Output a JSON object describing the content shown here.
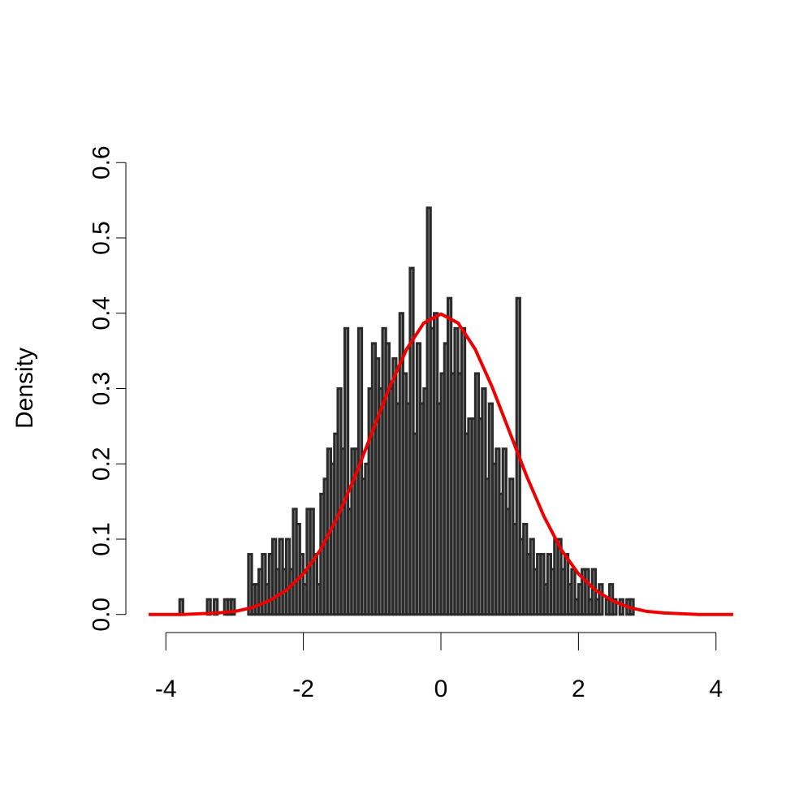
{
  "chart_data": {
    "type": "histogram",
    "ylabel": "Density",
    "bins": [
      -3.8,
      -3.75,
      -3.7,
      -3.65,
      -3.6,
      -3.55,
      -3.5,
      -3.45,
      -3.4,
      -3.35,
      -3.3,
      -3.25,
      -3.2,
      -3.15,
      -3.1,
      -3.05,
      -3.0,
      -2.95,
      -2.9,
      -2.85,
      -2.8,
      -2.75,
      -2.7,
      -2.65,
      -2.6,
      -2.55,
      -2.5,
      -2.45,
      -2.4,
      -2.35,
      -2.3,
      -2.25,
      -2.2,
      -2.15,
      -2.1,
      -2.05,
      -2.0,
      -1.95,
      -1.9,
      -1.85,
      -1.8,
      -1.75,
      -1.7,
      -1.65,
      -1.6,
      -1.55,
      -1.5,
      -1.45,
      -1.4,
      -1.35,
      -1.3,
      -1.25,
      -1.2,
      -1.15,
      -1.1,
      -1.05,
      -1.0,
      -0.95,
      -0.9,
      -0.85,
      -0.8,
      -0.75,
      -0.7,
      -0.65,
      -0.6,
      -0.55,
      -0.5,
      -0.45,
      -0.4,
      -0.35,
      -0.3,
      -0.25,
      -0.2,
      -0.15,
      -0.1,
      -0.05,
      0.0,
      0.05,
      0.1,
      0.15,
      0.2,
      0.25,
      0.3,
      0.35,
      0.4,
      0.45,
      0.5,
      0.55,
      0.6,
      0.65,
      0.7,
      0.75,
      0.8,
      0.85,
      0.9,
      0.95,
      1.0,
      1.05,
      1.1,
      1.15,
      1.2,
      1.25,
      1.3,
      1.35,
      1.4,
      1.45,
      1.5,
      1.55,
      1.6,
      1.65,
      1.7,
      1.75,
      1.8,
      1.85,
      1.9,
      1.95,
      2.0,
      2.05,
      2.1,
      2.15,
      2.2,
      2.25,
      2.3,
      2.35,
      2.4,
      2.45,
      2.5,
      2.55,
      2.6,
      2.65,
      2.7,
      2.75,
      2.8,
      2.85
    ],
    "values": [
      0.02,
      0,
      0,
      0,
      0,
      0,
      0,
      0,
      0.02,
      0,
      0.02,
      0,
      0,
      0.02,
      0.02,
      0.02,
      0,
      0,
      0,
      0,
      0.08,
      0.04,
      0.04,
      0.06,
      0.08,
      0.04,
      0.08,
      0.1,
      0.06,
      0.1,
      0.06,
      0.1,
      0.06,
      0.14,
      0.12,
      0.08,
      0.04,
      0.14,
      0.14,
      0.08,
      0.04,
      0.16,
      0.18,
      0.22,
      0.2,
      0.24,
      0.3,
      0.22,
      0.38,
      0.14,
      0.22,
      0.22,
      0.38,
      0.18,
      0.2,
      0.3,
      0.36,
      0.34,
      0.3,
      0.38,
      0.36,
      0.3,
      0.34,
      0.28,
      0.4,
      0.32,
      0.28,
      0.46,
      0.24,
      0.36,
      0.28,
      0.3,
      0.54,
      0.38,
      0.4,
      0.28,
      0.32,
      0.36,
      0.42,
      0.32,
      0.38,
      0.32,
      0.38,
      0.24,
      0.26,
      0.26,
      0.32,
      0.26,
      0.3,
      0.18,
      0.28,
      0.2,
      0.22,
      0.16,
      0.22,
      0.14,
      0.18,
      0.12,
      0.42,
      0.1,
      0.12,
      0.08,
      0.1,
      0.06,
      0.08,
      0.08,
      0.04,
      0.08,
      0.06,
      0.1,
      0.1,
      0.06,
      0.08,
      0.04,
      0.06,
      0.02,
      0.04,
      0.06,
      0.06,
      0.02,
      0.06,
      0.02,
      0.04,
      0,
      0.02,
      0.04,
      0.02,
      0,
      0.02,
      0,
      0.02,
      0.02,
      0,
      0.02
    ],
    "color": "#6e6e6e",
    "edge_color": "#2a2a2a",
    "curve": {
      "color": "#ee0000",
      "x": [
        -4.25,
        -4,
        -3.75,
        -3.5,
        -3.25,
        -3,
        -2.75,
        -2.5,
        -2.25,
        -2,
        -1.75,
        -1.5,
        -1.25,
        -1,
        -0.75,
        -0.5,
        -0.25,
        0,
        0.25,
        0.5,
        0.75,
        1,
        1.25,
        1.5,
        1.75,
        2,
        2.25,
        2.5,
        2.75,
        3,
        3.25,
        3.5,
        3.75,
        4,
        4.25
      ],
      "values": [
        0,
        0,
        0,
        0.001,
        0.002,
        0.004,
        0.009,
        0.018,
        0.032,
        0.054,
        0.086,
        0.13,
        0.183,
        0.242,
        0.301,
        0.352,
        0.387,
        0.399,
        0.387,
        0.352,
        0.301,
        0.242,
        0.183,
        0.13,
        0.086,
        0.054,
        0.032,
        0.018,
        0.009,
        0.004,
        0.002,
        0.001,
        0,
        0,
        0
      ]
    },
    "xlim": [
      -4.31,
      4.31
    ],
    "ylim": [
      -0.024,
      0.624
    ],
    "xticks": [
      -4,
      -2,
      0,
      2,
      4
    ],
    "yticks": [
      {
        "value": 0,
        "label": "0.0"
      },
      0.1,
      0.2,
      0.3,
      0.4,
      0.5,
      0.6
    ]
  }
}
